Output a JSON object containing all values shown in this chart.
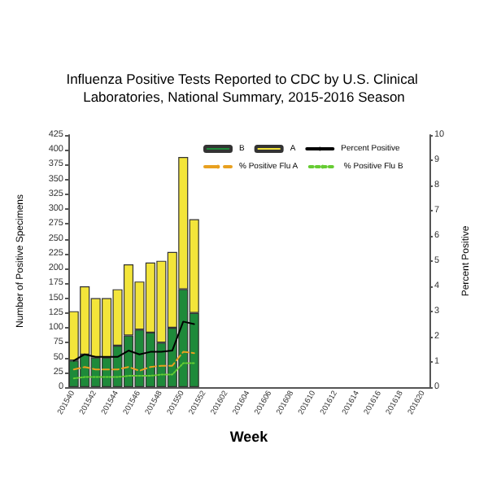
{
  "chart_data": {
    "type": "bar",
    "title": "Influenza Positive Tests Reported to CDC by U.S. Clinical Laboratories, National Summary, 2015-2016 Season",
    "xlabel": "Week",
    "ylabel": "Number of Positive Specimens",
    "y2label": "Percent Positive",
    "categories": [
      "201540",
      null,
      "201542",
      null,
      "201544",
      null,
      "201546",
      null,
      "201548",
      null,
      "201550",
      null,
      "201552",
      null,
      "201602",
      null,
      "201604",
      null,
      "201606",
      null,
      "201608",
      null,
      "201610",
      null,
      "201612",
      null,
      "201614",
      null,
      "201616",
      null,
      "201618",
      null,
      "201620"
    ],
    "stacked": true,
    "series": [
      {
        "name": "B",
        "color": "#1e8a3a",
        "values": [
          45,
          55,
          50,
          50,
          70,
          87,
          97,
          92,
          75,
          100,
          165,
          125,
          null,
          null,
          null,
          null,
          null,
          null,
          null,
          null,
          null,
          null,
          null,
          null,
          null,
          null,
          null,
          null,
          null,
          null,
          null,
          null,
          null
        ]
      },
      {
        "name": "A",
        "color": "#f3e53a",
        "values": [
          83,
          115,
          100,
          100,
          95,
          120,
          81,
          118,
          138,
          128,
          223,
          158,
          null,
          null,
          null,
          null,
          null,
          null,
          null,
          null,
          null,
          null,
          null,
          null,
          null,
          null,
          null,
          null,
          null,
          null,
          null,
          null,
          null
        ]
      },
      {
        "name": "Percent Positive",
        "type": "line",
        "axis": "y2",
        "color": "#000000",
        "line_style": "solid",
        "values": [
          1.05,
          1.3,
          1.2,
          1.2,
          1.2,
          1.45,
          1.3,
          1.4,
          1.4,
          1.45,
          2.6,
          2.5,
          null,
          null,
          null,
          null,
          null,
          null,
          null,
          null,
          null,
          null,
          null,
          null,
          null,
          null,
          null,
          null,
          null,
          null,
          null,
          null,
          null
        ]
      },
      {
        "name": "% Positive Flu A",
        "type": "line",
        "axis": "y2",
        "color": "#e8a020",
        "line_style": "dashed",
        "values": [
          0.7,
          0.8,
          0.7,
          0.7,
          0.7,
          0.8,
          0.65,
          0.8,
          0.85,
          0.85,
          1.4,
          1.35,
          null,
          null,
          null,
          null,
          null,
          null,
          null,
          null,
          null,
          null,
          null,
          null,
          null,
          null,
          null,
          null,
          null,
          null,
          null,
          null,
          null
        ]
      },
      {
        "name": "% Positive Flu B",
        "type": "line",
        "axis": "y2",
        "color": "#66cc33",
        "line_style": "dotted",
        "values": [
          0.35,
          0.4,
          0.4,
          0.4,
          0.4,
          0.45,
          0.45,
          0.45,
          0.5,
          0.5,
          0.95,
          0.95,
          null,
          null,
          null,
          null,
          null,
          null,
          null,
          null,
          null,
          null,
          null,
          null,
          null,
          null,
          null,
          null,
          null,
          null,
          null,
          null,
          null
        ]
      }
    ],
    "ylim": [
      0,
      425
    ],
    "yticks": [
      0,
      25,
      50,
      75,
      100,
      125,
      150,
      175,
      200,
      225,
      250,
      275,
      300,
      325,
      350,
      375,
      400,
      425
    ],
    "y2lim": [
      0,
      10
    ],
    "y2ticks": [
      0,
      1,
      2,
      3,
      4,
      5,
      6,
      7,
      8,
      9,
      10
    ],
    "marker": "none",
    "grid": false,
    "legend": "top"
  }
}
